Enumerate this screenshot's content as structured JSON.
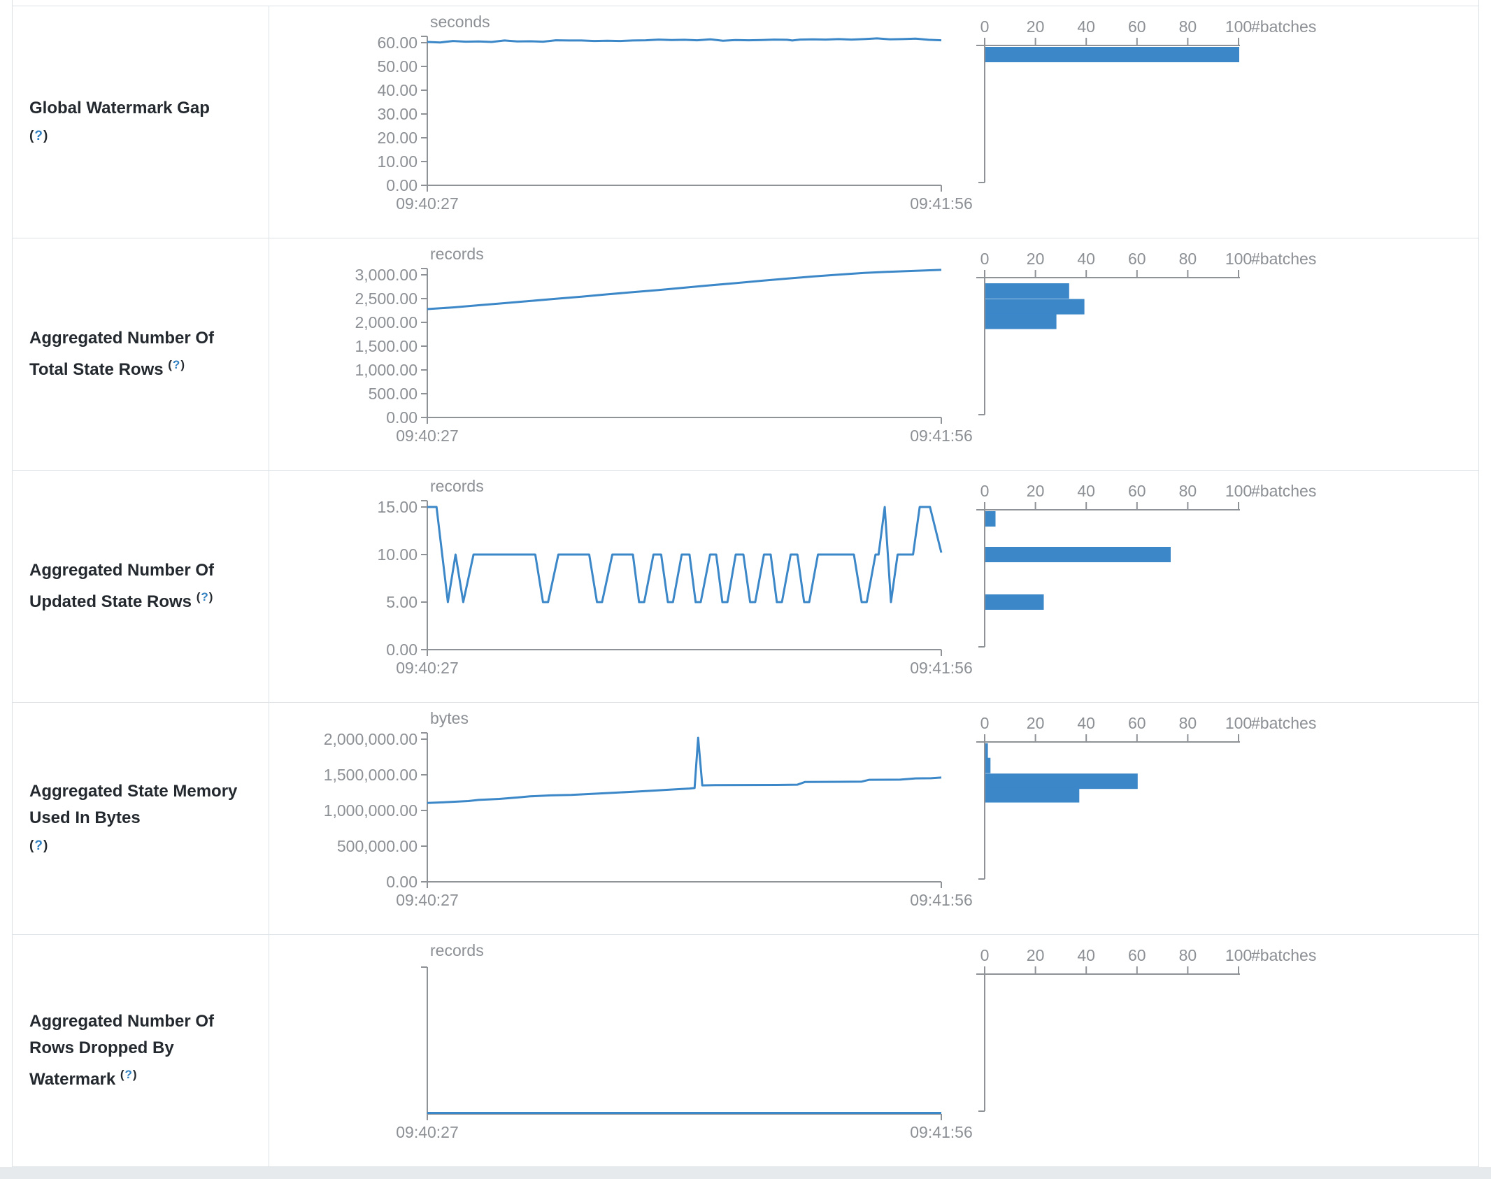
{
  "page": {
    "background": "#ffffff",
    "outer_strip_color": "#e6eaed",
    "table_border_color": "#dde2e7"
  },
  "colors": {
    "accent_blue": "#3b87c8",
    "axis_gray": "#8f9296",
    "tick_text_gray": "#8c9095",
    "label_text": "#23292e",
    "help_question_blue": "#2f7fc1"
  },
  "x_axis": {
    "start_label": "09:40:27",
    "end_label": "09:41:56"
  },
  "hist_axis": {
    "tick_labels": [
      "0",
      "20",
      "40",
      "60",
      "80",
      "100"
    ],
    "max": 100,
    "unit_label": "#batches"
  },
  "rows": [
    {
      "label": "Global Watermark Gap",
      "help": {
        "open": "(",
        "q": "?",
        "close": ")"
      },
      "help_own_line": true,
      "unit": "seconds",
      "y_ticks": [
        "0.00",
        "10.00",
        "20.00",
        "30.00",
        "40.00",
        "50.00",
        "60.00"
      ],
      "y_max": 60,
      "series": [
        [
          0,
          60.3
        ],
        [
          0.025,
          60.1
        ],
        [
          0.05,
          60.7
        ],
        [
          0.075,
          60.4
        ],
        [
          0.1,
          60.5
        ],
        [
          0.125,
          60.3
        ],
        [
          0.15,
          60.9
        ],
        [
          0.175,
          60.5
        ],
        [
          0.2,
          60.6
        ],
        [
          0.225,
          60.4
        ],
        [
          0.25,
          61.0
        ],
        [
          0.275,
          60.9
        ],
        [
          0.3,
          60.9
        ],
        [
          0.325,
          60.7
        ],
        [
          0.35,
          60.8
        ],
        [
          0.375,
          60.7
        ],
        [
          0.4,
          60.9
        ],
        [
          0.425,
          61.0
        ],
        [
          0.45,
          61.3
        ],
        [
          0.475,
          61.1
        ],
        [
          0.5,
          61.2
        ],
        [
          0.525,
          61.0
        ],
        [
          0.55,
          61.4
        ],
        [
          0.575,
          60.8
        ],
        [
          0.6,
          61.1
        ],
        [
          0.625,
          61.0
        ],
        [
          0.65,
          61.1
        ],
        [
          0.675,
          61.3
        ],
        [
          0.7,
          61.2
        ],
        [
          0.71,
          60.9
        ],
        [
          0.725,
          61.3
        ],
        [
          0.75,
          61.4
        ],
        [
          0.775,
          61.3
        ],
        [
          0.8,
          61.5
        ],
        [
          0.825,
          61.3
        ],
        [
          0.85,
          61.5
        ],
        [
          0.875,
          61.8
        ],
        [
          0.9,
          61.4
        ],
        [
          0.925,
          61.5
        ],
        [
          0.95,
          61.7
        ],
        [
          0.975,
          61.2
        ],
        [
          1,
          61.0
        ]
      ],
      "histogram": [
        {
          "count": 100,
          "level": 60
        }
      ]
    },
    {
      "label": "Aggregated Number Of Total State Rows",
      "help": {
        "open": "(",
        "q": "?",
        "close": ")"
      },
      "help_own_line": false,
      "unit": "records",
      "y_ticks": [
        "0.00",
        "500.00",
        "1,000.00",
        "1,500.00",
        "2,000.00",
        "2,500.00",
        "3,000.00"
      ],
      "y_max": 3000,
      "series": [
        [
          0,
          2280
        ],
        [
          0.05,
          2315
        ],
        [
          0.1,
          2360
        ],
        [
          0.15,
          2405
        ],
        [
          0.2,
          2450
        ],
        [
          0.25,
          2495
        ],
        [
          0.3,
          2540
        ],
        [
          0.35,
          2590
        ],
        [
          0.4,
          2635
        ],
        [
          0.45,
          2680
        ],
        [
          0.5,
          2730
        ],
        [
          0.55,
          2780
        ],
        [
          0.6,
          2825
        ],
        [
          0.65,
          2875
        ],
        [
          0.7,
          2920
        ],
        [
          0.75,
          2965
        ],
        [
          0.8,
          3005
        ],
        [
          0.85,
          3040
        ],
        [
          0.9,
          3065
        ],
        [
          0.95,
          3085
        ],
        [
          1,
          3105
        ]
      ],
      "histogram": [
        {
          "count": 33,
          "level": 2660
        },
        {
          "count": 39,
          "level": 2330
        },
        {
          "count": 28,
          "level": 2020
        }
      ]
    },
    {
      "label": "Aggregated Number Of Updated State Rows",
      "help": {
        "open": "(",
        "q": "?",
        "close": ")"
      },
      "help_own_line": false,
      "unit": "records",
      "y_ticks": [
        "0.00",
        "5.00",
        "10.00",
        "15.00"
      ],
      "y_max": 15,
      "series": [
        [
          0,
          15
        ],
        [
          0.018,
          15
        ],
        [
          0.04,
          5
        ],
        [
          0.055,
          10
        ],
        [
          0.07,
          5
        ],
        [
          0.09,
          10
        ],
        [
          0.21,
          10
        ],
        [
          0.225,
          5
        ],
        [
          0.235,
          5
        ],
        [
          0.255,
          10
        ],
        [
          0.315,
          10
        ],
        [
          0.33,
          5
        ],
        [
          0.34,
          5
        ],
        [
          0.36,
          10
        ],
        [
          0.4,
          10
        ],
        [
          0.412,
          5
        ],
        [
          0.422,
          5
        ],
        [
          0.44,
          10
        ],
        [
          0.455,
          10
        ],
        [
          0.468,
          5
        ],
        [
          0.478,
          5
        ],
        [
          0.495,
          10
        ],
        [
          0.51,
          10
        ],
        [
          0.522,
          5
        ],
        [
          0.532,
          5
        ],
        [
          0.55,
          10
        ],
        [
          0.562,
          10
        ],
        [
          0.574,
          5
        ],
        [
          0.584,
          5
        ],
        [
          0.6,
          10
        ],
        [
          0.615,
          10
        ],
        [
          0.628,
          5
        ],
        [
          0.638,
          5
        ],
        [
          0.655,
          10
        ],
        [
          0.668,
          10
        ],
        [
          0.68,
          5
        ],
        [
          0.69,
          5
        ],
        [
          0.707,
          10
        ],
        [
          0.72,
          10
        ],
        [
          0.733,
          5
        ],
        [
          0.743,
          5
        ],
        [
          0.76,
          10
        ],
        [
          0.83,
          10
        ],
        [
          0.845,
          5
        ],
        [
          0.855,
          5
        ],
        [
          0.872,
          10
        ],
        [
          0.878,
          10
        ],
        [
          0.89,
          15
        ],
        [
          0.902,
          5
        ],
        [
          0.915,
          10
        ],
        [
          0.945,
          10
        ],
        [
          0.958,
          15
        ],
        [
          0.978,
          15
        ],
        [
          1,
          10.2
        ]
      ],
      "histogram": [
        {
          "count": 4,
          "level": 15
        },
        {
          "count": 73,
          "level": 10
        },
        {
          "count": 23,
          "level": 5
        }
      ]
    },
    {
      "label": "Aggregated State Memory Used In Bytes",
      "help": {
        "open": "(",
        "q": "?",
        "close": ")"
      },
      "help_own_line": true,
      "unit": "bytes",
      "y_ticks": [
        "0.00",
        "500,000.00",
        "1,000,000.00",
        "1,500,000.00",
        "2,000,000.00"
      ],
      "y_max": 2000000,
      "series": [
        [
          0,
          1105000
        ],
        [
          0.04,
          1118000
        ],
        [
          0.08,
          1132000
        ],
        [
          0.1,
          1148000
        ],
        [
          0.14,
          1162000
        ],
        [
          0.18,
          1185000
        ],
        [
          0.2,
          1198000
        ],
        [
          0.24,
          1212000
        ],
        [
          0.28,
          1218000
        ],
        [
          0.32,
          1232000
        ],
        [
          0.36,
          1248000
        ],
        [
          0.4,
          1262000
        ],
        [
          0.44,
          1278000
        ],
        [
          0.48,
          1295000
        ],
        [
          0.51,
          1308000
        ],
        [
          0.52,
          1315000
        ],
        [
          0.527,
          2020000
        ],
        [
          0.535,
          1352000
        ],
        [
          0.56,
          1356000
        ],
        [
          0.62,
          1357000
        ],
        [
          0.68,
          1358000
        ],
        [
          0.72,
          1362000
        ],
        [
          0.735,
          1400000
        ],
        [
          0.8,
          1402000
        ],
        [
          0.845,
          1405000
        ],
        [
          0.86,
          1430000
        ],
        [
          0.92,
          1432000
        ],
        [
          0.95,
          1450000
        ],
        [
          0.98,
          1452000
        ],
        [
          1,
          1462000
        ]
      ],
      "histogram": [
        {
          "count": 1,
          "level": 2000000
        },
        {
          "count": 2,
          "level": 1630000
        },
        {
          "count": 60,
          "level": 1410000
        },
        {
          "count": 37,
          "level": 1220000
        }
      ]
    },
    {
      "label": "Aggregated Number Of Rows Dropped By Watermark",
      "help": {
        "open": "(",
        "q": "?",
        "close": ")"
      },
      "help_own_line": false,
      "unit": "records",
      "y_ticks": [],
      "y_max": 1,
      "series": [
        [
          0,
          0
        ],
        [
          1,
          0
        ]
      ],
      "histogram": []
    }
  ]
}
